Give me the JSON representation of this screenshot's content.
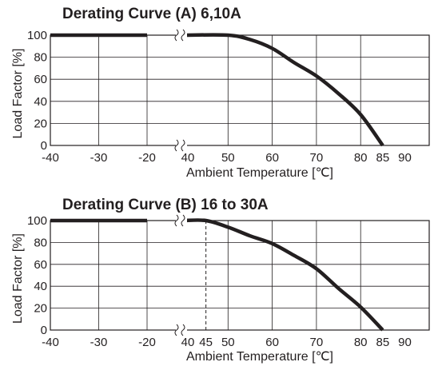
{
  "chart_data": [
    {
      "type": "line",
      "title": "Derating Curve (A) 6,10A",
      "xlabel": "Ambient Temperature [℃]",
      "ylabel": "Load Factor [%]",
      "x_ticks": [
        "-40",
        "-30",
        "-20",
        "40",
        "50",
        "60",
        "70",
        "80",
        "85",
        "90"
      ],
      "y_ticks": [
        "0",
        "20",
        "40",
        "60",
        "80",
        "100"
      ],
      "axis_break": "between -20 and 40 on x-axis",
      "grid": true,
      "series": [
        {
          "x": [
            -40,
            -20,
            40,
            50,
            55,
            60,
            65,
            70,
            75,
            80,
            85
          ],
          "y": [
            100,
            100,
            100,
            100,
            96,
            88,
            75,
            63,
            47,
            28,
            0
          ]
        }
      ],
      "ylim": [
        0,
        100
      ]
    },
    {
      "type": "line",
      "title": "Derating Curve (B) 16 to 30A",
      "xlabel": "Ambient Temperature [℃]",
      "ylabel": "Load Factor [%]",
      "x_ticks": [
        "-40",
        "-30",
        "-20",
        "40",
        "45",
        "50",
        "60",
        "70",
        "80",
        "85",
        "90"
      ],
      "y_ticks": [
        "0",
        "20",
        "40",
        "60",
        "80",
        "100"
      ],
      "axis_break": "between -20 and 40 on x-axis",
      "grid": true,
      "reference_line_x": 45,
      "series": [
        {
          "x": [
            -40,
            -20,
            40,
            45,
            50,
            55,
            60,
            65,
            70,
            75,
            80,
            85
          ],
          "y": [
            100,
            100,
            100,
            100,
            94,
            86,
            79,
            68,
            56,
            38,
            21,
            0
          ]
        }
      ],
      "ylim": [
        0,
        100
      ]
    }
  ]
}
